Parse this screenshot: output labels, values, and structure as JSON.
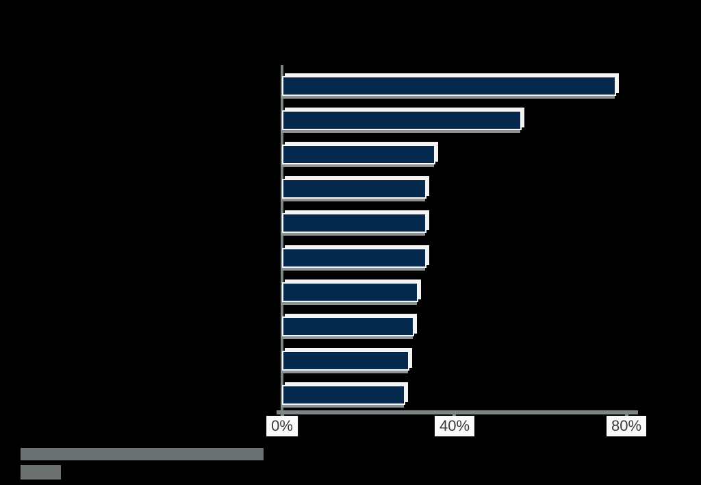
{
  "canvas": {
    "background": "#000000"
  },
  "chart_data": {
    "type": "bar",
    "orientation": "horizontal",
    "title": "",
    "values": [
      77,
      55,
      35,
      33,
      33,
      33,
      31,
      30,
      29,
      28
    ],
    "categories_visible": false,
    "x_ticks": [
      {
        "value": 0,
        "label": "0%"
      },
      {
        "value": 40,
        "label": "40%"
      },
      {
        "value": 80,
        "label": "80%"
      }
    ],
    "xlim": [
      0,
      82.5
    ],
    "grid": false,
    "legend": false,
    "notes": "Horizontal bar chart; category labels, title and footnote text are not legible in the image (rendered as black/flattened gray blocks)."
  },
  "colors": {
    "bar": "#052a4e",
    "axis": "#7e8587",
    "bar_highlight": "#f3f3f3",
    "bar_shadow": "#8d9394",
    "tick_label_bg": "#fbfbfb",
    "tick_label_text": "#3a3a3a",
    "footer_block": "#6c7271"
  },
  "footer": {
    "source_block": "illegible-gray-text-block",
    "brand_block": "illegible-gray-text-block"
  }
}
